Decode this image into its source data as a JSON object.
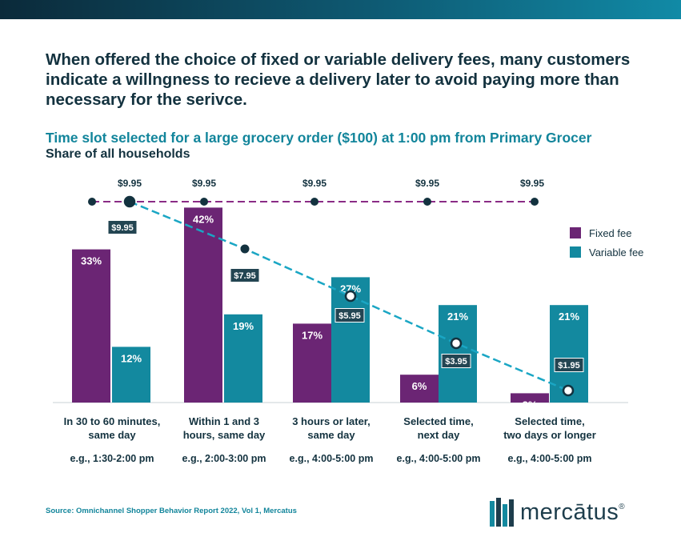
{
  "headline": "When offered the choice of fixed or variable delivery fees, many customers indicate a willngness to recieve a delivery later to avoid paying more than necessary for the serivce.",
  "subtitle": "Time slot selected for a large grocery order ($100) at 1:00 pm from Primary Grocer",
  "subtitle2": "Share of all households",
  "source": "Source: Omnichannel Shopper Behavior Report 2022, Vol 1, Mercatus",
  "logo": {
    "text": "mercātus",
    "mark": "®"
  },
  "colors": {
    "fixed": "#6b2574",
    "variable": "#13899f",
    "fixed_line": "#8a2c86",
    "variable_line": "#1aa6c4",
    "dark": "#13323f"
  },
  "chart_data": {
    "type": "bar",
    "title": "Time slot selected for a large grocery order ($100) at 1:00 pm from Primary Grocer",
    "ylabel": "Share of all households",
    "ylim": [
      0,
      45
    ],
    "legend_position": "right",
    "categories": [
      {
        "label": "In 30 to 60 minutes, same day",
        "lines": [
          "In 30 to 60 minutes,",
          "same day"
        ],
        "example": "e.g., 1:30-2:00 pm"
      },
      {
        "label": "Within 1 and 3 hours, same day",
        "lines": [
          "Within 1 and 3",
          "hours, same day"
        ],
        "example": "e.g., 2:00-3:00 pm"
      },
      {
        "label": "3 hours or later, same day",
        "lines": [
          "3 hours or later,",
          "same day"
        ],
        "example": "e.g., 4:00-5:00 pm"
      },
      {
        "label": "Selected time, next day",
        "lines": [
          "Selected time,",
          "next day"
        ],
        "example": "e.g., 4:00-5:00 pm"
      },
      {
        "label": "Selected time, two days or longer",
        "lines": [
          "Selected time,",
          "two days or longer"
        ],
        "example": "e.g., 4:00-5:00 pm"
      }
    ],
    "series": [
      {
        "name": "Fixed fee",
        "values": [
          33,
          42,
          17,
          6,
          2
        ],
        "labels": [
          "33%",
          "42%",
          "17%",
          "6%",
          "2%"
        ],
        "fee": [
          9.95,
          9.95,
          9.95,
          9.95,
          9.95
        ],
        "fee_labels": [
          "$9.95",
          "$9.95",
          "$9.95",
          "$9.95",
          "$9.95"
        ]
      },
      {
        "name": "Variable fee",
        "values": [
          12,
          19,
          27,
          21,
          21
        ],
        "labels": [
          "12%",
          "19%",
          "27%",
          "21%",
          "21%"
        ],
        "fee": [
          9.95,
          7.95,
          5.95,
          3.95,
          1.95
        ],
        "fee_labels": [
          "$9.95",
          "$7.95",
          "$5.95",
          "$3.95",
          "$1.95"
        ]
      }
    ]
  }
}
